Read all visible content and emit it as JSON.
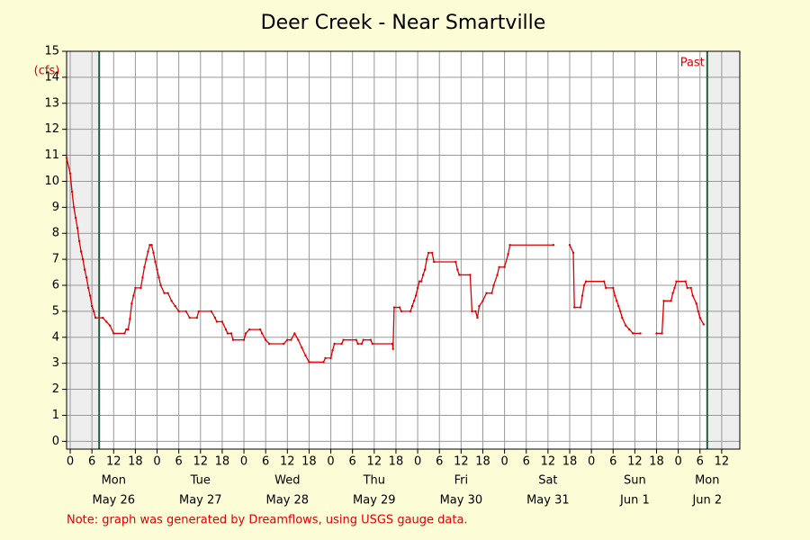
{
  "chart_data": {
    "type": "line",
    "title": "Deer Creek - Near Smartville",
    "y_label": "(cfs)",
    "annotation": "Past",
    "note": "Note: graph was generated by Dreamflows, using USGS gauge data.",
    "xlim": [
      -1,
      185
    ],
    "ylim": [
      -0.3,
      15
    ],
    "xticks": [
      0,
      6,
      12,
      18,
      {
        "value": 24,
        "label": "0"
      },
      {
        "value": 30,
        "label": "6"
      },
      {
        "value": 36,
        "label": "12"
      },
      {
        "value": 42,
        "label": "18"
      },
      {
        "value": 48,
        "label": "0"
      },
      {
        "value": 54,
        "label": "6"
      },
      {
        "value": 60,
        "label": "12"
      },
      {
        "value": 66,
        "label": "18"
      },
      {
        "value": 72,
        "label": "0"
      },
      {
        "value": 78,
        "label": "6"
      },
      {
        "value": 84,
        "label": "12"
      },
      {
        "value": 90,
        "label": "18"
      },
      {
        "value": 96,
        "label": "0"
      },
      {
        "value": 102,
        "label": "6"
      },
      {
        "value": 108,
        "label": "12"
      },
      {
        "value": 114,
        "label": "18"
      },
      {
        "value": 120,
        "label": "0"
      },
      {
        "value": 126,
        "label": "6"
      },
      {
        "value": 132,
        "label": "12"
      },
      {
        "value": 138,
        "label": "18"
      },
      {
        "value": 144,
        "label": "0"
      },
      {
        "value": 150,
        "label": "6"
      },
      {
        "value": 156,
        "label": "12"
      },
      {
        "value": 162,
        "label": "18"
      },
      {
        "value": 168,
        "label": "0"
      },
      {
        "value": 174,
        "label": "6"
      },
      {
        "value": 180,
        "label": "12"
      }
    ],
    "yticks": [
      0,
      1,
      2,
      3,
      4,
      5,
      6,
      7,
      8,
      9,
      10,
      11,
      12,
      13,
      14,
      15
    ],
    "grid": true,
    "window": [
      8,
      176
    ],
    "day_labels": {
      "x": [
        12,
        36,
        60,
        84,
        108,
        132,
        156,
        176
      ],
      "days": [
        "Mon",
        "Tue",
        "Wed",
        "Thu",
        "Fri",
        "Sat",
        "Sun",
        "Mon"
      ],
      "dates": [
        "May 26",
        "May 27",
        "May 28",
        "May 29",
        "May 30",
        "May 31",
        "Jun 1",
        "Jun 2"
      ]
    },
    "x": [
      -1,
      0,
      0.5,
      1,
      1.5,
      2,
      2.5,
      3,
      3.5,
      4,
      4.5,
      5,
      5.5,
      6,
      6.5,
      7,
      9,
      10,
      11,
      12,
      15,
      15.5,
      16,
      16.5,
      17,
      17.5,
      18,
      19.5,
      20,
      20.5,
      21,
      21.5,
      22,
      22.5,
      23,
      23.5,
      24,
      24.5,
      25,
      26,
      27,
      28,
      29,
      30,
      32,
      33,
      35,
      35.5,
      39,
      40,
      40.5,
      42,
      43,
      43.5,
      44.5,
      45,
      48,
      48.5,
      49.5,
      52.5,
      53,
      54,
      55,
      59,
      60,
      61,
      62,
      63,
      64,
      65,
      66,
      70,
      70.5,
      72,
      72.5,
      73,
      75,
      75.5,
      79,
      79.5,
      80.5,
      81,
      83,
      83.5,
      89,
      89.2,
      89.5,
      91,
      91.5,
      94,
      94.5,
      95,
      95.5,
      96,
      96.5,
      97,
      97.5,
      98,
      98.5,
      99,
      100,
      100.5,
      106.5,
      107,
      107.5,
      110.5,
      111,
      112,
      112.5,
      113,
      114,
      115,
      116.5,
      117,
      118,
      118.5,
      120,
      121,
      121.5,
      133.5,
      135,
      138,
      139,
      139.3,
      141,
      141.5,
      142,
      142.5,
      147.5,
      148,
      150,
      150.5,
      151,
      151.5,
      152,
      152.5,
      153.5,
      154.5,
      155.5,
      157.5,
      160,
      162,
      163.5,
      164,
      166,
      166.5,
      167,
      167.5,
      170,
      170.5,
      171.5,
      172,
      173,
      173.5,
      174,
      175
    ],
    "series": [
      {
        "color": "#dd0000",
        "values": [
          10.9,
          10.3,
          9.6,
          9.0,
          8.6,
          8.2,
          7.7,
          7.3,
          7.0,
          6.6,
          6.3,
          5.9,
          5.6,
          5.2,
          5.0,
          4.75,
          4.75,
          4.6,
          4.45,
          4.15,
          4.15,
          4.3,
          4.3,
          4.7,
          5.3,
          5.6,
          5.9,
          5.9,
          6.3,
          6.7,
          7.0,
          7.3,
          7.55,
          7.55,
          7.25,
          6.9,
          6.6,
          6.3,
          6.0,
          5.7,
          5.7,
          5.4,
          5.2,
          5.0,
          5.0,
          4.75,
          4.75,
          5.0,
          5.0,
          4.75,
          4.6,
          4.6,
          4.3,
          4.15,
          4.15,
          3.9,
          3.9,
          4.15,
          4.3,
          4.3,
          4.15,
          3.9,
          3.75,
          3.75,
          3.9,
          3.9,
          4.15,
          3.9,
          3.6,
          3.3,
          3.05,
          3.05,
          3.2,
          3.2,
          3.5,
          3.75,
          3.75,
          3.9,
          3.9,
          3.75,
          3.75,
          3.9,
          3.9,
          3.75,
          3.75,
          3.55,
          5.15,
          5.15,
          5.0,
          5.0,
          5.2,
          5.4,
          5.6,
          5.9,
          6.15,
          6.15,
          6.4,
          6.6,
          7.0,
          7.25,
          7.25,
          6.9,
          6.9,
          6.6,
          6.4,
          6.4,
          5.0,
          5.0,
          4.75,
          5.2,
          5.4,
          5.7,
          5.7,
          6.0,
          6.4,
          6.7,
          6.7,
          7.2,
          7.55,
          7.55,
          null,
          7.55,
          7.25,
          5.15,
          5.15,
          5.6,
          6.0,
          6.15,
          6.15,
          5.9,
          5.9,
          5.6,
          5.4,
          5.2,
          5.0,
          4.75,
          4.45,
          4.3,
          4.15,
          4.15,
          null,
          4.15,
          4.15,
          5.4,
          5.4,
          5.7,
          5.9,
          6.15,
          6.15,
          5.9,
          5.9,
          5.6,
          5.3,
          5.0,
          4.75,
          4.5
        ]
      }
    ]
  }
}
